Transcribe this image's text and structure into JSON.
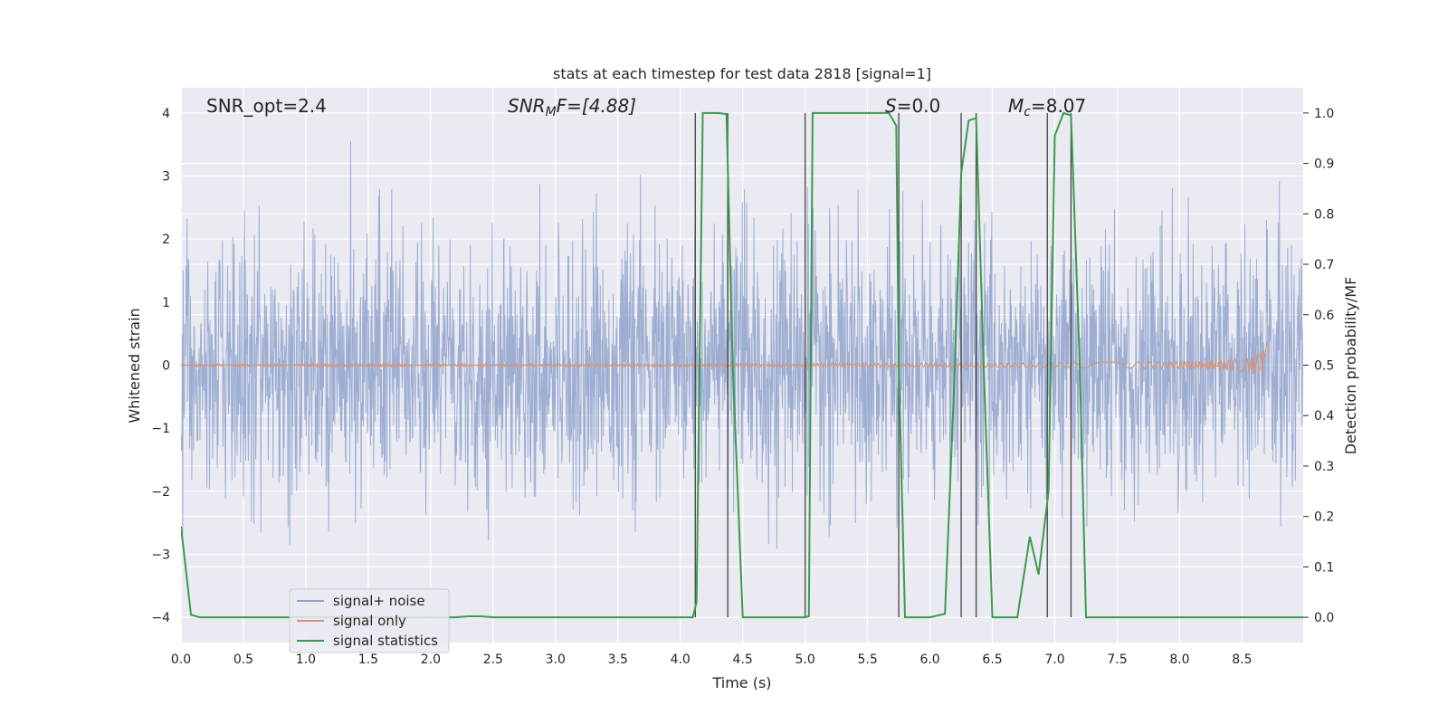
{
  "chart_data": {
    "type": "line",
    "title": "stats at each timestep for test data 2818 [signal=1]",
    "xlabel": "Time (s)",
    "ylabel": "Whitened strain",
    "y2label": "Detection probability/MF",
    "xlim": [
      0,
      8.99
    ],
    "ylim": [
      -4.4,
      4.4
    ],
    "y2lim": [
      -0.05,
      1.05
    ],
    "x_ticks": [
      0,
      0.5,
      1,
      1.5,
      2,
      2.5,
      3,
      3.5,
      4,
      4.5,
      5,
      5.5,
      6,
      6.5,
      7,
      7.5,
      8,
      8.5
    ],
    "x_tick_labels": [
      "0.0",
      "0.5",
      "1.0",
      "1.5",
      "2.0",
      "2.5",
      "3.0",
      "3.5",
      "4.0",
      "4.5",
      "5.0",
      "5.5",
      "6.0",
      "6.5",
      "7.0",
      "7.5",
      "8.0",
      "8.5"
    ],
    "y_ticks": [
      4,
      3,
      2,
      1,
      0,
      -1,
      -2,
      -3,
      -4
    ],
    "y_tick_labels": [
      "4",
      "3",
      "2",
      "1",
      "0",
      "−1",
      "−2",
      "−3",
      "−4"
    ],
    "y2_ticks": [
      1.0,
      0.9,
      0.8,
      0.7,
      0.6,
      0.5,
      0.4,
      0.3,
      0.2,
      0.1,
      0.0
    ],
    "y2_tick_labels": [
      "1.0",
      "0.9",
      "0.8",
      "0.7",
      "0.6",
      "0.5",
      "0.4",
      "0.3",
      "0.2",
      "0.1",
      "0.0"
    ],
    "grid": true,
    "legend_position": "lower-left",
    "annotations": {
      "snr_opt": "SNR_opt=2.4",
      "snr_mf_label": "SNR",
      "snr_mf_sub": "M",
      "snr_mf_rest": "F=[4.88]",
      "s_label": "S",
      "s_rest": "=0.0",
      "mc_label": "M",
      "mc_sub": "c",
      "mc_rest": "=8.07"
    },
    "series": [
      {
        "name": "signal+ noise",
        "color": "#8fa3cc",
        "description_type": "noise",
        "typical_range": [
          -2.5,
          2.5
        ],
        "extremes": [
          -3.8,
          3.55
        ]
      },
      {
        "name": "signal only",
        "color": "#d1957a",
        "description_type": "chirp",
        "end_time": 8.7,
        "peak_amplitude": 0.38
      },
      {
        "name": "signal statistics",
        "color": "#3a9c4a",
        "axis": "right",
        "x": [
          0.0,
          0.08,
          0.15,
          0.5,
          1.0,
          1.5,
          2.0,
          2.2,
          2.3,
          2.4,
          2.5,
          3.0,
          3.5,
          4.0,
          4.1,
          4.13,
          4.18,
          4.3,
          4.37,
          4.42,
          4.5,
          5.0,
          5.03,
          5.06,
          5.5,
          5.67,
          5.73,
          5.75,
          5.8,
          5.85,
          6.0,
          6.12,
          6.2,
          6.25,
          6.31,
          6.37,
          6.43,
          6.5,
          6.6,
          6.7,
          6.8,
          6.87,
          6.95,
          7.0,
          7.07,
          7.13,
          7.2,
          7.25,
          7.5,
          8.0,
          8.5,
          8.99
        ],
        "y": [
          0.18,
          0.005,
          0.0,
          0.0,
          0.0,
          0.0,
          0.0,
          0.0,
          0.002,
          0.002,
          0.0,
          0.0,
          0.0,
          0.0,
          0.0,
          0.03,
          1.0,
          1.0,
          0.998,
          0.5,
          0.0,
          0.0,
          0.002,
          1.0,
          1.0,
          1.0,
          0.975,
          0.5,
          0.0,
          0.0,
          0.0,
          0.007,
          0.5,
          0.88,
          0.985,
          0.99,
          0.5,
          0.0,
          0.0,
          0.0,
          0.16,
          0.085,
          0.25,
          0.955,
          1.0,
          0.995,
          0.5,
          0.0,
          0.0,
          0.0,
          0.0,
          0.0
        ]
      }
    ],
    "vlines": [
      4.12,
      4.38,
      5.0,
      5.75,
      6.25,
      6.37,
      6.94,
      7.13
    ]
  }
}
